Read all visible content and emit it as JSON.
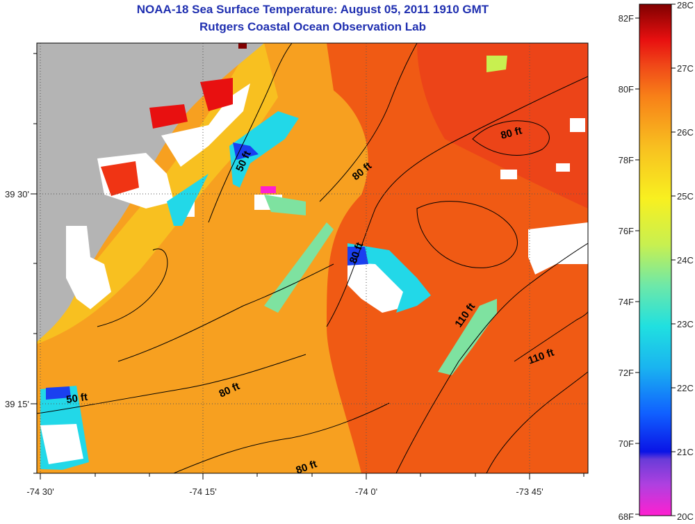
{
  "header": {
    "title": "NOAA-18 Sea Surface Temperature:  August 05, 2011 1910 GMT",
    "subtitle": "Rutgers Coastal Ocean Observation Lab"
  },
  "map": {
    "lon_labels": [
      "-74 30'",
      "-74 15'",
      "-74 0'",
      "-73 45'"
    ],
    "lat_labels": [
      "39 30'",
      "39 15'"
    ],
    "depth_labels": [
      "50 ft",
      "80 ft",
      "80 ft",
      "80 ft",
      "110 ft",
      "110 ft",
      "80 ft",
      "50 ft",
      "80 ft"
    ],
    "colors": {
      "land": "#b4b4b4",
      "cloud": "#ffffff",
      "warm_water": "#f05a14",
      "mid_water": "#f7a020",
      "cool_water": "#22d8e8"
    }
  },
  "colorbar": {
    "fahrenheit_labels": [
      "82F",
      "80F",
      "78F",
      "76F",
      "74F",
      "72F",
      "70F",
      "68F"
    ],
    "celsius_labels": [
      "28C",
      "27C",
      "26C",
      "25C",
      "24C",
      "23C",
      "22C",
      "21C",
      "20C"
    ],
    "range_c": [
      20,
      28
    ],
    "range_f": [
      68,
      82.4
    ]
  }
}
